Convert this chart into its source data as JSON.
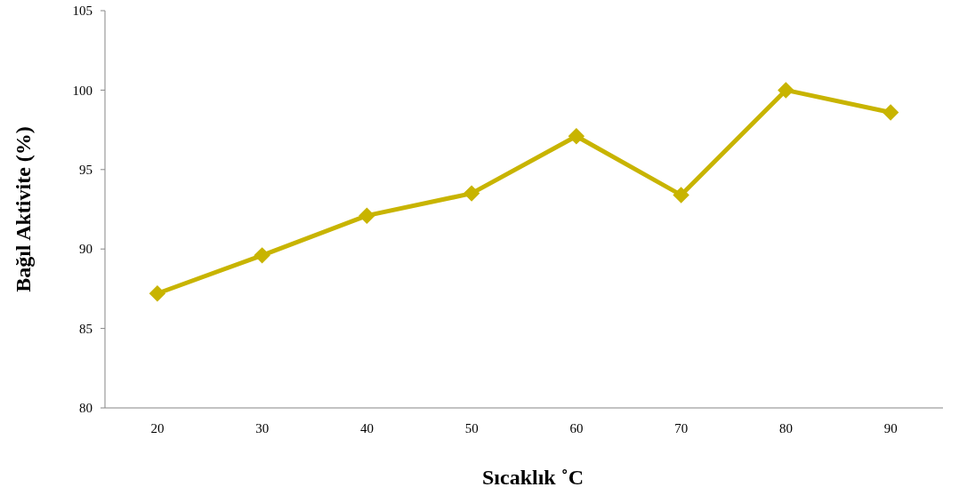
{
  "chart_data": {
    "type": "line",
    "xlabel": "Sıcaklık ˚C",
    "ylabel": "Bağıl Aktivite (%)",
    "categories": [
      "20",
      "30",
      "40",
      "50",
      "60",
      "70",
      "80",
      "90"
    ],
    "series": [
      {
        "color": "#c8b400",
        "values": [
          87.2,
          89.6,
          92.1,
          93.5,
          97.1,
          93.4,
          100,
          98.6
        ]
      }
    ],
    "ylim": [
      80,
      105
    ],
    "yticks": [
      80,
      85,
      90,
      95,
      100,
      105
    ],
    "marker": "diamond",
    "grid": false
  }
}
